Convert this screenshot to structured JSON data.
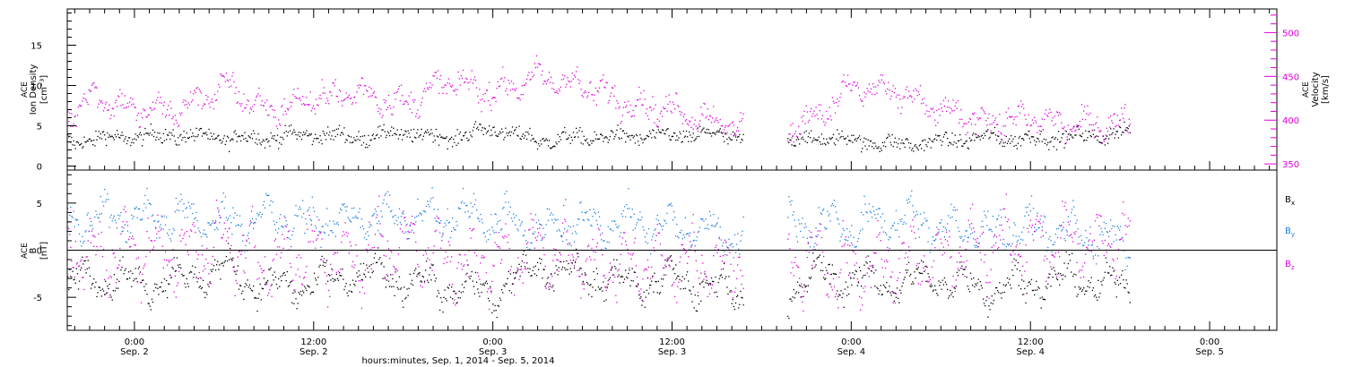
{
  "figure": {
    "xlabel": "hours:minutes, Sep.  1, 2014 - Sep.  5, 2014",
    "x_ticks": [
      {
        "time": "0:00",
        "date": "Sep. 2"
      },
      {
        "time": "12:00",
        "date": "Sep. 2"
      },
      {
        "time": "0:00",
        "date": "Sep. 3"
      },
      {
        "time": "12:00",
        "date": "Sep. 3"
      },
      {
        "time": "0:00",
        "date": "Sep. 4"
      },
      {
        "time": "12:00",
        "date": "Sep. 4"
      },
      {
        "time": "0:00",
        "date": "Sep. 5"
      }
    ]
  },
  "colors": {
    "axis": "#000000",
    "density": "#000000",
    "velocity": "#e000e0",
    "bx": "#000000",
    "by": "#1f7fe0",
    "bz": "#e000e0"
  },
  "chart_data": [
    {
      "type": "scatter",
      "panel": "top",
      "x_unit": "hours since Sep. 1, 2014 0:00",
      "xlim": [
        19.5,
        100.5
      ],
      "data_end_x": 90.7,
      "data_gap_x": [
        64.8,
        67.7
      ],
      "ylabel_lines": [
        "ACE",
        "Ion Density",
        "[cm⁻³]"
      ],
      "ylim": [
        -0.5,
        19.5
      ],
      "yticks": [
        0,
        5,
        10,
        15
      ],
      "y2label_lines": [
        "ACE",
        "Velocity",
        "[km/s]"
      ],
      "y2lim": [
        343,
        527
      ],
      "y2ticks": [
        350,
        400,
        450,
        500
      ],
      "series": [
        {
          "key": "density",
          "axis": "left",
          "x": [
            19.5,
            21,
            24,
            27,
            30,
            33,
            36,
            39,
            42,
            45,
            48,
            51,
            54,
            57,
            60,
            63,
            64.8,
            67.7,
            70,
            72,
            75,
            78,
            81,
            84,
            87,
            90.7
          ],
          "y": [
            3.0,
            3.4,
            3.7,
            3.9,
            3.5,
            3.6,
            4.0,
            3.6,
            4.2,
            3.5,
            4.7,
            3.2,
            3.6,
            3.7,
            3.8,
            4.0,
            3.5,
            3.1,
            3.6,
            3.3,
            2.7,
            3.1,
            3.6,
            3.4,
            3.7,
            4.2
          ]
        },
        {
          "key": "velocity",
          "axis": "right",
          "x": [
            19.5,
            21,
            24,
            27,
            30,
            33,
            36,
            39,
            42,
            45,
            48,
            51,
            54,
            57,
            60,
            63,
            64.8,
            67.7,
            70,
            72,
            75,
            78,
            81,
            84,
            87,
            90.7
          ],
          "y": [
            405,
            430,
            412,
            412,
            440,
            410,
            425,
            433,
            418,
            445,
            432,
            450,
            440,
            420,
            412,
            400,
            390,
            388,
            410,
            438,
            432,
            410,
            400,
            402,
            395,
            398
          ]
        }
      ]
    },
    {
      "type": "scatter",
      "panel": "bottom",
      "x_unit": "hours since Sep. 1, 2014 0:00",
      "xlim": [
        19.5,
        100.5
      ],
      "data_end_x": 90.7,
      "data_gap_x": [
        64.8,
        67.7
      ],
      "ylabel_lines": [
        "ACE",
        "B",
        "[nT]"
      ],
      "ylim": [
        -8.5,
        8.5
      ],
      "yticks": [
        -5,
        0,
        5
      ],
      "legend_position": "right",
      "series": [
        {
          "key": "bx",
          "name": "B",
          "name_sub": "x",
          "x": [
            19.5,
            21,
            24,
            27,
            30,
            33,
            36,
            39,
            42,
            45,
            48,
            51,
            54,
            57,
            60,
            63,
            64.8,
            67.7,
            70,
            72,
            75,
            78,
            81,
            84,
            87,
            90.7
          ],
          "y": [
            -4.0,
            -2.5,
            -3.5,
            -3.0,
            -2.0,
            -4.0,
            -3.5,
            -2.5,
            -3.0,
            -4.0,
            -4.5,
            -1.5,
            -2.5,
            -3.5,
            -3.0,
            -4.0,
            -4.5,
            -4.5,
            -2.5,
            -3.0,
            -3.5,
            -3.0,
            -4.0,
            -3.5,
            -3.0,
            -4.0
          ]
        },
        {
          "key": "by",
          "name": "B",
          "name_sub": "y",
          "x": [
            19.5,
            21,
            24,
            27,
            30,
            33,
            36,
            39,
            42,
            45,
            48,
            51,
            54,
            57,
            60,
            63,
            64.8,
            67.7,
            70,
            72,
            75,
            78,
            81,
            84,
            87,
            90.7
          ],
          "y": [
            3.0,
            3.5,
            3.5,
            3.5,
            3.0,
            3.5,
            3.0,
            3.5,
            3.5,
            4.0,
            3.5,
            2.0,
            3.0,
            3.0,
            2.5,
            2.0,
            1.5,
            2.5,
            3.0,
            2.5,
            3.5,
            2.5,
            2.0,
            2.5,
            2.0,
            0.5
          ]
        },
        {
          "key": "bz",
          "name": "B",
          "name_sub": "z",
          "x": [
            19.5,
            21,
            24,
            27,
            30,
            33,
            36,
            39,
            42,
            45,
            48,
            51,
            54,
            57,
            60,
            63,
            64.8,
            67.7,
            70,
            72,
            75,
            78,
            81,
            84,
            87,
            90.7
          ],
          "y": [
            1.0,
            -1.0,
            0.5,
            -0.5,
            1.0,
            -1.5,
            0.0,
            -1.0,
            1.0,
            -0.5,
            -1.5,
            0.5,
            -1.0,
            -1.5,
            -1.0,
            -1.5,
            -1.0,
            -1.0,
            -1.5,
            -2.0,
            -1.0,
            -0.5,
            0.5,
            1.0,
            0.5,
            1.5
          ]
        }
      ]
    }
  ]
}
